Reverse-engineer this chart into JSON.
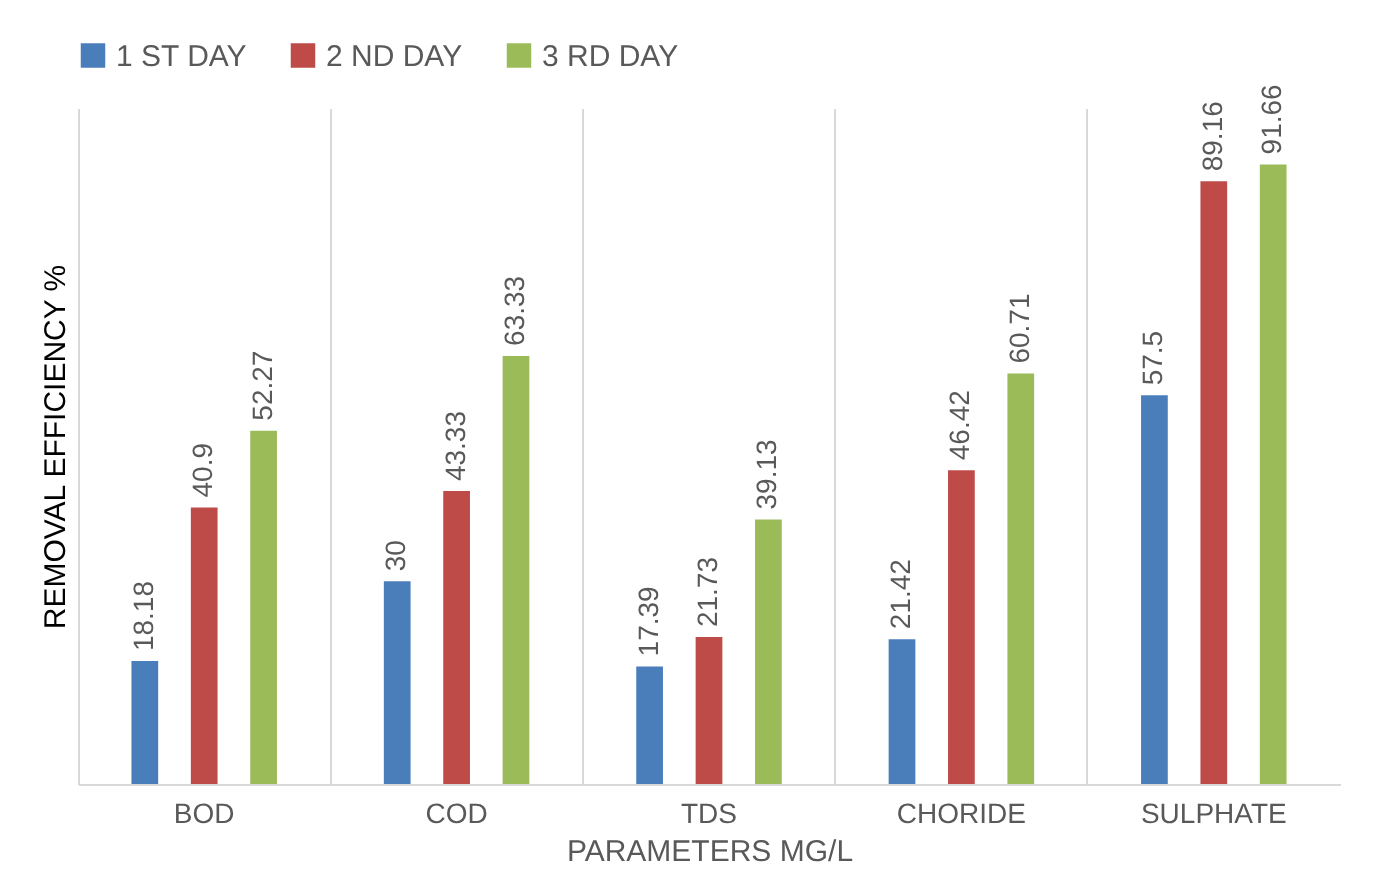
{
  "chart_data": {
    "type": "bar",
    "xlabel": "PARAMETERS MG/L",
    "ylabel": "REMOVAL EFFICIENCY %",
    "categories": [
      "BOD",
      "COD",
      "TDS",
      "CHORIDE",
      "SULPHATE"
    ],
    "series": [
      {
        "name": "1 ST DAY",
        "color": "#4a7ebb",
        "values": [
          18.18,
          30,
          17.39,
          21.42,
          57.5
        ]
      },
      {
        "name": "2 ND DAY",
        "color": "#be4b48",
        "values": [
          40.9,
          43.33,
          21.73,
          46.42,
          89.16
        ]
      },
      {
        "name": "3 RD DAY",
        "color": "#9bbb59",
        "values": [
          52.27,
          63.33,
          39.13,
          60.71,
          91.66
        ]
      }
    ],
    "data_labels": true,
    "legend": "top",
    "grid": "x"
  }
}
